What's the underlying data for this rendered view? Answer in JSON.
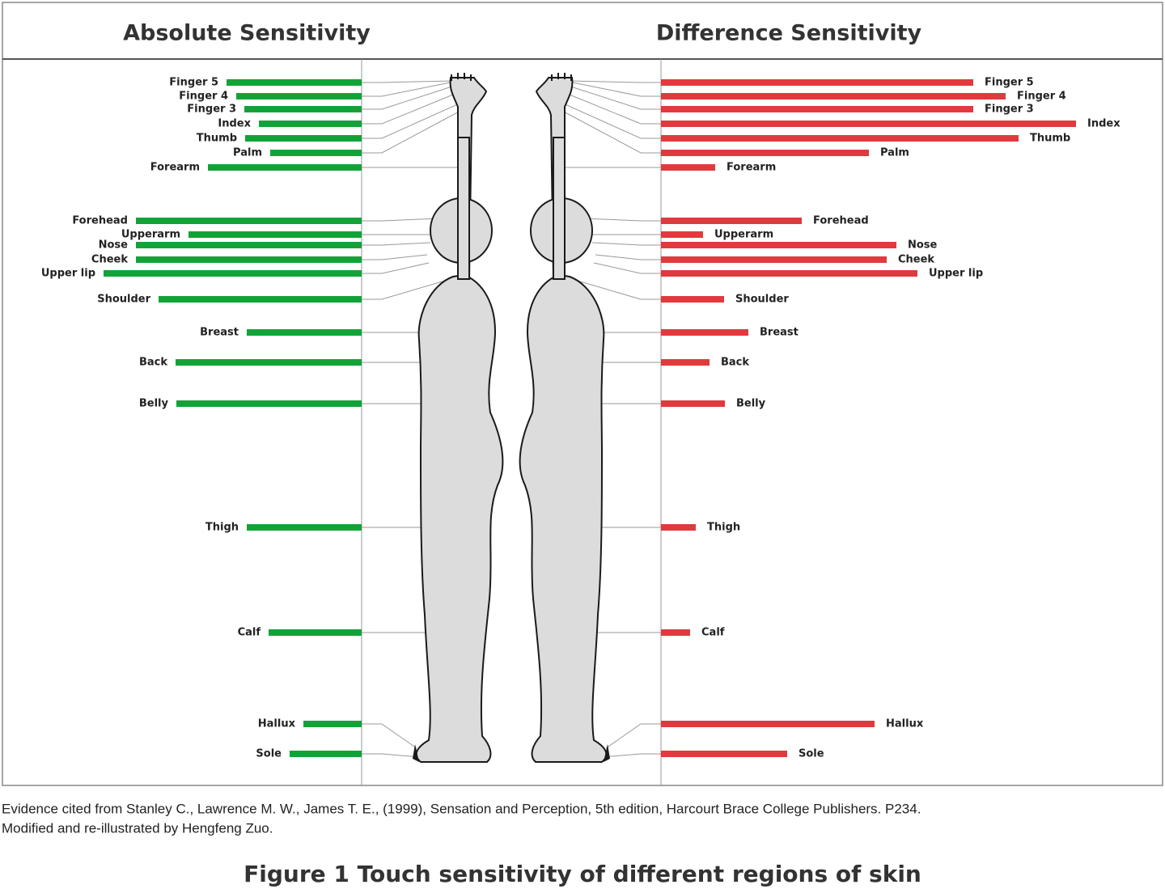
{
  "chart_data": [
    {
      "type": "bar",
      "orientation": "horizontal",
      "title": "Absolute Sensitivity",
      "color": "#12a338",
      "categories": [
        "Finger 5",
        "Finger 4",
        "Finger 3",
        "Index",
        "Thumb",
        "Palm",
        "Forearm",
        "Forehead",
        "Upperarm",
        "Nose",
        "Cheek",
        "Upper lip",
        "Shoulder",
        "Breast",
        "Back",
        "Belly",
        "Thigh",
        "Calf",
        "Hallux",
        "Sole"
      ],
      "values": [
        167,
        155,
        145,
        127,
        144,
        113,
        190,
        279,
        214,
        279,
        279,
        319,
        251,
        142,
        230,
        229,
        142,
        115,
        72,
        89
      ]
    },
    {
      "type": "bar",
      "orientation": "horizontal",
      "title": "Difference  Sensitivity",
      "color": "#e03a3e",
      "categories": [
        "Finger 5",
        "Finger 4",
        "Finger 3",
        "Index",
        "Thumb",
        "Palm",
        "Forearm",
        "Forehead",
        "Upperarm",
        "Nose",
        "Cheek",
        "Upper lip",
        "Shoulder",
        "Breast",
        "Back",
        "Belly",
        "Thigh",
        "Calf",
        "Hallux",
        "Sole"
      ],
      "values": [
        386,
        426,
        386,
        513,
        442,
        257,
        67,
        174,
        52,
        291,
        279,
        317,
        78,
        108,
        60,
        79,
        43,
        36,
        264,
        156
      ]
    }
  ],
  "caption": [
    "Evidence cited from Stanley C., Lawrence M. W., James T. E., (1999), Sensation and Perception, 5th edition, Harcourt Brace College Publishers. P234.",
    "Modified and re-illustrated by Hengfeng Zuo."
  ],
  "figure_title": "Figure 1 Touch sensitivity of different regions of skin"
}
